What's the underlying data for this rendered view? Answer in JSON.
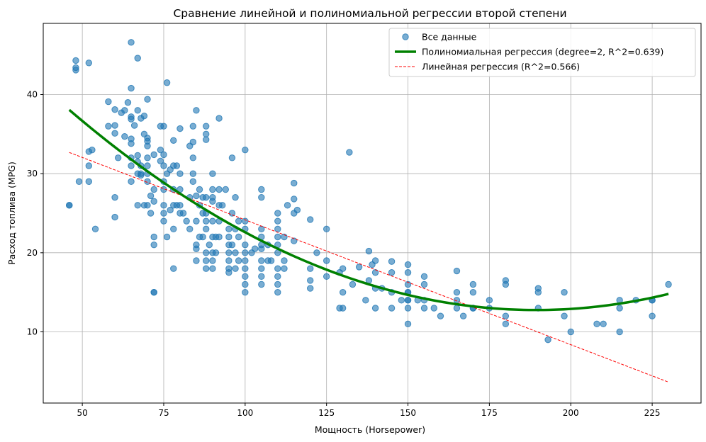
{
  "chart_data": {
    "type": "scatter",
    "title": "Сравнение линейной и полиномиальной регрессии второй степени",
    "xlabel": "Мощность (Horsepower)",
    "ylabel": "Расход топлива (MPG)",
    "xlim": [
      38,
      240
    ],
    "ylim": [
      1,
      49
    ],
    "xticks": [
      50,
      75,
      100,
      125,
      150,
      175,
      200,
      225
    ],
    "yticks": [
      10,
      20,
      30,
      40
    ],
    "grid": true,
    "legend_position": "top-right",
    "series": [
      {
        "name": "Все данные",
        "kind": "scatter",
        "color": "#1f77b4",
        "points": [
          [
            46,
            26
          ],
          [
            46,
            26
          ],
          [
            48,
            43.4
          ],
          [
            48,
            43.1
          ],
          [
            48,
            44.3
          ],
          [
            49,
            29
          ],
          [
            52,
            44
          ],
          [
            52,
            31
          ],
          [
            52,
            29
          ],
          [
            52,
            32.8
          ],
          [
            53,
            33
          ],
          [
            54,
            23
          ],
          [
            58,
            39.1
          ],
          [
            58,
            36
          ],
          [
            60,
            24.5
          ],
          [
            60,
            27
          ],
          [
            60,
            35.1
          ],
          [
            60,
            36.1
          ],
          [
            60,
            38.1
          ],
          [
            61,
            32
          ],
          [
            62,
            37.7
          ],
          [
            63,
            38
          ],
          [
            63,
            34.7
          ],
          [
            64,
            39
          ],
          [
            65,
            46.6
          ],
          [
            65,
            40.8
          ],
          [
            65,
            37.2
          ],
          [
            65,
            36.9
          ],
          [
            65,
            32
          ],
          [
            65,
            31
          ],
          [
            65,
            29
          ],
          [
            65,
            34.4
          ],
          [
            65,
            33.8
          ],
          [
            66,
            36.1
          ],
          [
            67,
            44.6
          ],
          [
            67,
            38
          ],
          [
            67,
            32.3
          ],
          [
            67,
            31.5
          ],
          [
            67,
            30
          ],
          [
            67,
            26
          ],
          [
            68,
            37
          ],
          [
            68,
            31
          ],
          [
            68,
            29.8
          ],
          [
            68,
            30
          ],
          [
            69,
            37.3
          ],
          [
            69,
            35
          ],
          [
            69,
            26
          ],
          [
            70,
            39.4
          ],
          [
            70,
            34.5
          ],
          [
            70,
            34.1
          ],
          [
            70,
            33.5
          ],
          [
            70,
            32
          ],
          [
            70,
            31
          ],
          [
            70,
            30
          ],
          [
            70,
            29
          ],
          [
            70,
            26
          ],
          [
            71,
            27.2
          ],
          [
            71,
            25
          ],
          [
            72,
            32.4
          ],
          [
            72,
            28
          ],
          [
            72,
            26.5
          ],
          [
            72,
            22
          ],
          [
            72,
            21
          ],
          [
            72,
            15
          ],
          [
            72,
            15
          ],
          [
            74,
            36
          ],
          [
            74,
            33
          ],
          [
            74,
            31.6
          ],
          [
            75,
            32.4
          ],
          [
            75,
            31
          ],
          [
            75,
            29
          ],
          [
            75,
            28
          ],
          [
            75,
            26
          ],
          [
            75,
            24
          ],
          [
            75,
            25
          ],
          [
            75,
            36
          ],
          [
            76,
            41.5
          ],
          [
            76,
            30
          ],
          [
            76,
            22
          ],
          [
            77,
            25.4
          ],
          [
            77,
            30.5
          ],
          [
            78,
            34.2
          ],
          [
            78,
            31
          ],
          [
            78,
            28
          ],
          [
            78,
            26
          ],
          [
            78,
            23
          ],
          [
            78,
            18
          ],
          [
            79,
            31
          ],
          [
            79,
            26
          ],
          [
            80,
            35.7
          ],
          [
            80,
            30
          ],
          [
            80,
            28
          ],
          [
            80,
            25
          ],
          [
            80,
            26
          ],
          [
            81,
            25
          ],
          [
            82,
            24
          ],
          [
            83,
            33.5
          ],
          [
            83,
            27
          ],
          [
            83,
            23
          ],
          [
            84,
            36
          ],
          [
            84,
            34
          ],
          [
            84,
            32
          ],
          [
            84,
            30
          ],
          [
            84,
            29
          ],
          [
            85,
            38
          ],
          [
            85,
            27.2
          ],
          [
            85,
            24
          ],
          [
            85,
            21
          ],
          [
            85,
            20.5
          ],
          [
            85,
            19
          ],
          [
            86,
            28
          ],
          [
            86,
            26
          ],
          [
            86,
            22
          ],
          [
            87,
            27
          ],
          [
            87,
            25
          ],
          [
            87,
            22
          ],
          [
            88,
            34.3
          ],
          [
            88,
            36
          ],
          [
            88,
            35
          ],
          [
            88,
            27
          ],
          [
            88,
            25
          ],
          [
            88,
            24
          ],
          [
            88,
            23
          ],
          [
            88,
            20
          ],
          [
            88,
            19
          ],
          [
            88,
            18
          ],
          [
            89,
            21
          ],
          [
            90,
            30
          ],
          [
            90,
            28
          ],
          [
            90,
            27
          ],
          [
            90,
            26.5
          ],
          [
            90,
            24
          ],
          [
            90,
            22
          ],
          [
            90,
            20
          ],
          [
            90,
            19
          ],
          [
            90,
            18
          ],
          [
            91,
            22
          ],
          [
            91,
            20
          ],
          [
            92,
            37
          ],
          [
            92,
            28
          ],
          [
            92,
            26
          ],
          [
            92,
            24
          ],
          [
            92,
            22
          ],
          [
            93,
            26
          ],
          [
            94,
            28
          ],
          [
            95,
            23
          ],
          [
            95,
            22
          ],
          [
            95,
            21
          ],
          [
            95,
            20
          ],
          [
            95,
            19
          ],
          [
            95,
            18
          ],
          [
            95,
            17.5
          ],
          [
            96,
            32
          ],
          [
            96,
            25
          ],
          [
            96,
            21
          ],
          [
            97,
            27
          ],
          [
            97,
            23
          ],
          [
            97,
            20
          ],
          [
            97,
            18
          ],
          [
            98,
            24
          ],
          [
            98,
            22
          ],
          [
            98,
            19
          ],
          [
            100,
            33
          ],
          [
            100,
            24
          ],
          [
            100,
            23
          ],
          [
            100,
            21
          ],
          [
            100,
            20
          ],
          [
            100,
            19
          ],
          [
            100,
            18
          ],
          [
            100,
            17
          ],
          [
            100,
            16
          ],
          [
            100,
            15
          ],
          [
            102,
            20
          ],
          [
            103,
            20.5
          ],
          [
            105,
            28
          ],
          [
            105,
            27
          ],
          [
            105,
            23
          ],
          [
            105,
            22
          ],
          [
            105,
            21
          ],
          [
            105,
            20.5
          ],
          [
            105,
            19
          ],
          [
            105,
            18
          ],
          [
            105,
            17
          ],
          [
            105,
            16
          ],
          [
            107,
            21
          ],
          [
            107,
            19
          ],
          [
            108,
            19
          ],
          [
            110,
            25
          ],
          [
            110,
            24
          ],
          [
            110,
            23
          ],
          [
            110,
            22
          ],
          [
            110,
            21
          ],
          [
            110,
            20
          ],
          [
            110,
            18
          ],
          [
            110,
            17
          ],
          [
            110,
            16
          ],
          [
            110,
            15
          ],
          [
            112,
            22
          ],
          [
            112,
            19
          ],
          [
            112,
            18
          ],
          [
            113,
            26
          ],
          [
            115,
            28.8
          ],
          [
            115,
            26.8
          ],
          [
            115,
            25
          ],
          [
            115,
            21.5
          ],
          [
            116,
            25.4
          ],
          [
            120,
            24.2
          ],
          [
            120,
            18
          ],
          [
            120,
            16.5
          ],
          [
            120,
            15.5
          ],
          [
            122,
            20
          ],
          [
            125,
            23
          ],
          [
            125,
            19
          ],
          [
            125,
            17
          ],
          [
            129,
            13
          ],
          [
            129,
            17.5
          ],
          [
            130,
            18
          ],
          [
            130,
            15
          ],
          [
            130,
            13
          ],
          [
            132,
            32.7
          ],
          [
            133,
            16
          ],
          [
            135,
            18.2
          ],
          [
            137,
            14
          ],
          [
            138,
            20.2
          ],
          [
            138,
            16.5
          ],
          [
            139,
            18.5
          ],
          [
            140,
            17.5
          ],
          [
            140,
            15.5
          ],
          [
            140,
            13
          ],
          [
            140,
            19
          ],
          [
            142,
            15.5
          ],
          [
            145,
            18.9
          ],
          [
            145,
            17.5
          ],
          [
            145,
            15
          ],
          [
            145,
            13
          ],
          [
            148,
            14
          ],
          [
            150,
            18.5
          ],
          [
            150,
            17.5
          ],
          [
            150,
            16
          ],
          [
            150,
            15
          ],
          [
            150,
            14
          ],
          [
            150,
            14
          ],
          [
            150,
            13
          ],
          [
            150,
            11
          ],
          [
            150,
            15
          ],
          [
            153,
            14
          ],
          [
            155,
            17
          ],
          [
            155,
            16
          ],
          [
            155,
            14
          ],
          [
            155,
            13
          ],
          [
            158,
            13
          ],
          [
            160,
            12
          ],
          [
            165,
            17.7
          ],
          [
            165,
            15
          ],
          [
            165,
            13
          ],
          [
            165,
            14
          ],
          [
            167,
            12
          ],
          [
            170,
            16
          ],
          [
            170,
            15
          ],
          [
            170,
            13
          ],
          [
            170,
            13
          ],
          [
            175,
            14
          ],
          [
            175,
            13
          ],
          [
            180,
            16.5
          ],
          [
            180,
            16
          ],
          [
            180,
            12
          ],
          [
            180,
            11
          ],
          [
            190,
            15.5
          ],
          [
            190,
            15
          ],
          [
            190,
            13
          ],
          [
            193,
            9
          ],
          [
            198,
            15
          ],
          [
            198,
            12
          ],
          [
            200,
            10
          ],
          [
            208,
            11
          ],
          [
            210,
            11
          ],
          [
            215,
            14
          ],
          [
            215,
            13
          ],
          [
            215,
            10
          ],
          [
            220,
            14
          ],
          [
            225,
            14
          ],
          [
            225,
            12
          ],
          [
            225,
            14
          ],
          [
            230,
            16
          ]
        ]
      },
      {
        "name": "Полиномиальная регрессия (degree=2, R^2=0.639)",
        "kind": "line",
        "color": "#008000",
        "coefficients": [
          56.9,
          -0.4662,
          0.001231
        ]
      },
      {
        "name": "Линейная регрессия (R^2=0.566)",
        "kind": "line",
        "dashed": true,
        "color": "#ff0000",
        "coefficients": [
          39.94,
          -0.1578
        ]
      }
    ],
    "x_range": [
      46,
      230
    ]
  }
}
